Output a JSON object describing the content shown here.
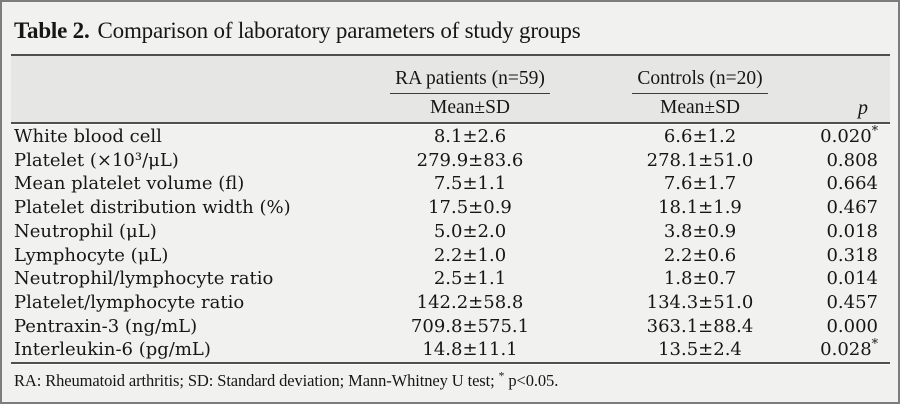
{
  "title": {
    "label": "Table 2.",
    "caption": "Comparison of laboratory parameters of study groups"
  },
  "header": {
    "group_ra": "RA patients (n=59)",
    "group_controls": "Controls (n=20)",
    "mean_sd": "Mean±SD",
    "p": "p"
  },
  "rows": [
    {
      "param": "White blood cell",
      "ra": "8.1±2.6",
      "controls": "6.6±1.2",
      "p": "0.020",
      "p_star": "*"
    },
    {
      "param": "Platelet (×10³/μL)",
      "ra": "279.9±83.6",
      "controls": "278.1±51.0",
      "p": "0.808",
      "p_star": ""
    },
    {
      "param": "Mean platelet volume (fl)",
      "ra": "7.5±1.1",
      "controls": "7.6±1.7",
      "p": "0.664",
      "p_star": ""
    },
    {
      "param": "Platelet distribution width (%)",
      "ra": "17.5±0.9",
      "controls": "18.1±1.9",
      "p": "0.467",
      "p_star": ""
    },
    {
      "param": "Neutrophil (μL)",
      "ra": "5.0±2.0",
      "controls": "3.8±0.9",
      "p": "0.018",
      "p_star": ""
    },
    {
      "param": "Lymphocyte (μL)",
      "ra": "2.2±1.0",
      "controls": "2.2±0.6",
      "p": "0.318",
      "p_star": ""
    },
    {
      "param": "Neutrophil/lymphocyte ratio",
      "ra": "2.5±1.1",
      "controls": "1.8±0.7",
      "p": "0.014",
      "p_star": ""
    },
    {
      "param": "Platelet/lymphocyte ratio",
      "ra": "142.2±58.8",
      "controls": "134.3±51.0",
      "p": "0.457",
      "p_star": ""
    },
    {
      "param": "Pentraxin-3 (ng/mL)",
      "ra": "709.8±575.1",
      "controls": "363.1±88.4",
      "p": "0.000",
      "p_star": ""
    },
    {
      "param": "Interleukin-6 (pg/mL)",
      "ra": "14.8±11.1",
      "controls": "13.5±2.4",
      "p": "0.028",
      "p_star": "*"
    }
  ],
  "footnote": {
    "text": "RA: Rheumatoid arthritis; SD: Standard deviation; Mann-Whitney U test;",
    "star": "*",
    "text_after": "p<0.05."
  },
  "colors": {
    "background": "#f1f1ef",
    "header_band": "#e6e6e4",
    "rule": "#4f4f4f",
    "border": "#7d7d7d",
    "text": "#161616"
  }
}
